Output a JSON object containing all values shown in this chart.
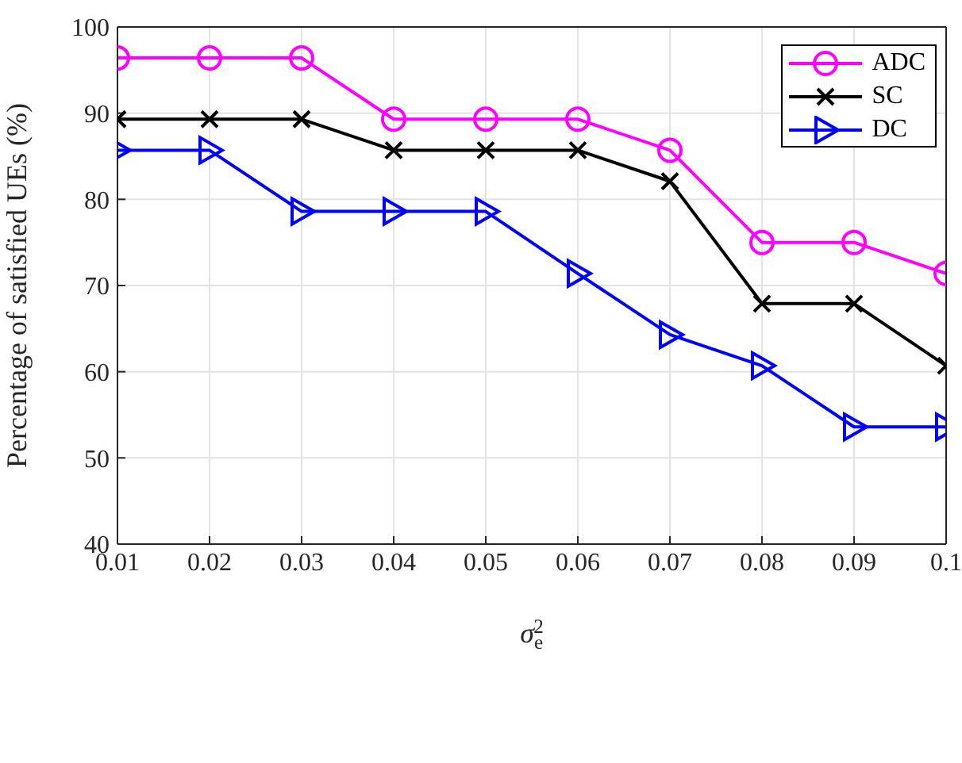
{
  "chart_data": {
    "type": "line",
    "xlabel": "σ$_{e}$$^{2}$",
    "ylabel": "Percentage of satisfied UEs (%)",
    "x": [
      0.01,
      0.02,
      0.03,
      0.04,
      0.05,
      0.06,
      0.07,
      0.08,
      0.09,
      0.1
    ],
    "series": [
      {
        "name": "ADC",
        "color": "#ff00ff",
        "marker": "circle",
        "values": [
          96.4,
          96.4,
          96.4,
          89.3,
          89.3,
          89.3,
          85.7,
          75,
          75,
          71.4
        ]
      },
      {
        "name": "SC",
        "color": "#000000",
        "marker": "cross",
        "values": [
          89.3,
          89.3,
          89.3,
          85.7,
          85.7,
          85.7,
          82.1,
          67.9,
          67.9,
          60.7
        ]
      },
      {
        "name": "DC",
        "color": "#0000ff",
        "marker": "triangle",
        "values": [
          85.7,
          85.7,
          78.6,
          78.6,
          78.6,
          71.4,
          64.3,
          60.7,
          53.6,
          53.6
        ]
      }
    ],
    "xlim": [
      0.01,
      0.1
    ],
    "xticks": [
      0.01,
      0.02,
      0.03,
      0.04,
      0.05,
      0.06,
      0.07,
      0.08,
      0.09,
      0.1
    ],
    "ylim": [
      40,
      100
    ],
    "yticks": [
      40,
      50,
      60,
      70,
      80,
      90,
      100
    ],
    "grid": true,
    "legend": "top right",
    "line_style": "solid"
  }
}
